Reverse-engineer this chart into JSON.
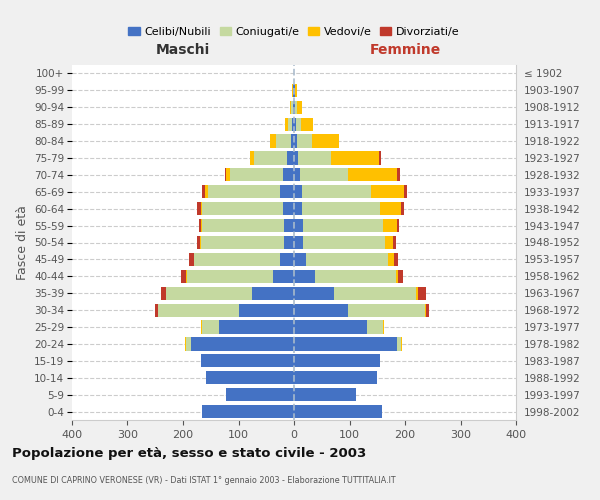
{
  "age_groups": [
    "0-4",
    "5-9",
    "10-14",
    "15-19",
    "20-24",
    "25-29",
    "30-34",
    "35-39",
    "40-44",
    "45-49",
    "50-54",
    "55-59",
    "60-64",
    "65-69",
    "70-74",
    "75-79",
    "80-84",
    "85-89",
    "90-94",
    "95-99",
    "100+"
  ],
  "birth_years": [
    "1998-2002",
    "1993-1997",
    "1988-1992",
    "1983-1987",
    "1978-1982",
    "1973-1977",
    "1968-1972",
    "1963-1967",
    "1958-1962",
    "1953-1957",
    "1948-1952",
    "1943-1947",
    "1938-1942",
    "1933-1937",
    "1928-1932",
    "1923-1927",
    "1918-1922",
    "1913-1917",
    "1908-1912",
    "1903-1907",
    "≤ 1902"
  ],
  "males": {
    "celibi": [
      165,
      122,
      158,
      168,
      185,
      135,
      100,
      75,
      38,
      25,
      18,
      18,
      20,
      25,
      20,
      12,
      5,
      3,
      2,
      1,
      0
    ],
    "coniugati": [
      0,
      0,
      0,
      0,
      10,
      30,
      145,
      155,
      155,
      155,
      150,
      148,
      145,
      130,
      95,
      60,
      28,
      8,
      3,
      1,
      0
    ],
    "vedovi": [
      0,
      0,
      0,
      0,
      1,
      2,
      0,
      0,
      1,
      1,
      2,
      2,
      3,
      5,
      8,
      8,
      10,
      6,
      2,
      1,
      0
    ],
    "divorziati": [
      0,
      0,
      0,
      0,
      0,
      0,
      6,
      10,
      10,
      8,
      5,
      4,
      6,
      5,
      2,
      0,
      0,
      0,
      0,
      0,
      0
    ]
  },
  "females": {
    "nubili": [
      158,
      112,
      150,
      155,
      185,
      132,
      98,
      72,
      38,
      22,
      16,
      16,
      15,
      15,
      10,
      8,
      5,
      3,
      2,
      1,
      0
    ],
    "coniugate": [
      0,
      0,
      0,
      0,
      8,
      28,
      138,
      148,
      145,
      148,
      148,
      145,
      140,
      123,
      88,
      58,
      28,
      10,
      4,
      1,
      0
    ],
    "vedove": [
      0,
      0,
      0,
      0,
      2,
      2,
      2,
      3,
      5,
      10,
      15,
      24,
      38,
      60,
      88,
      88,
      48,
      22,
      9,
      3,
      0
    ],
    "divorziate": [
      0,
      0,
      0,
      0,
      0,
      0,
      6,
      15,
      8,
      8,
      5,
      5,
      5,
      5,
      5,
      2,
      0,
      0,
      0,
      0,
      0
    ]
  },
  "colors": {
    "celibi": "#4472c4",
    "coniugati": "#c5d9a0",
    "vedovi": "#ffc000",
    "divorziati": "#c0392b"
  },
  "xlim": 400,
  "xticks": [
    -400,
    -300,
    -200,
    -100,
    0,
    100,
    200,
    300,
    400
  ],
  "title": "Popolazione per età, sesso e stato civile - 2003",
  "subtitle": "COMUNE DI CAPRINO VERONESE (VR) - Dati ISTAT 1° gennaio 2003 - Elaborazione TUTTITALIA.IT",
  "ylabel_left": "Fasce di età",
  "xlabel_left": "Maschi",
  "xlabel_right": "Femmine",
  "legend_labels": [
    "Celibi/Nubili",
    "Coniugati/e",
    "Vedovi/e",
    "Divorziati/e"
  ],
  "bg_color": "#f0f0f0",
  "plot_bg_color": "#ffffff"
}
